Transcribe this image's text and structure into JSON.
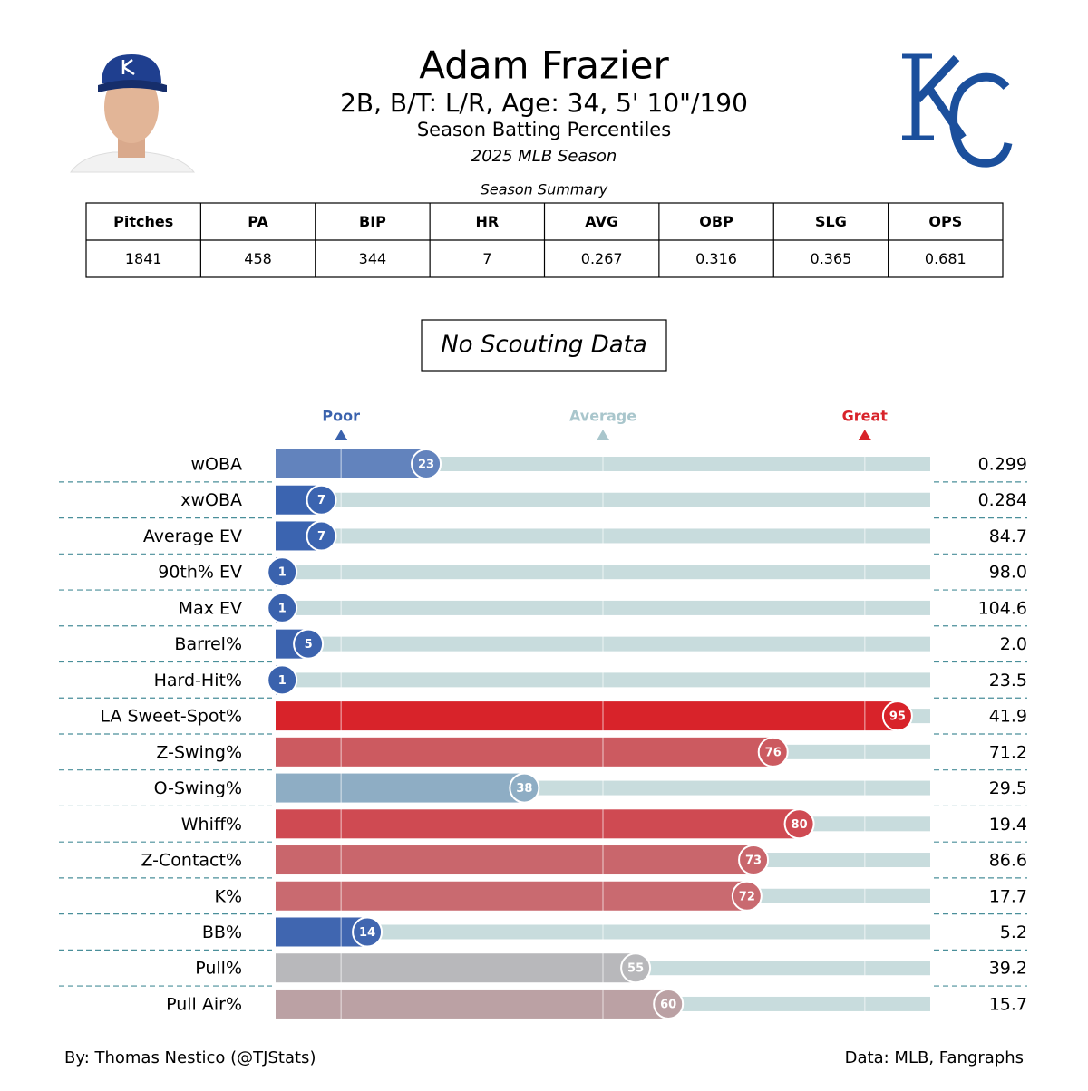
{
  "header": {
    "name": "Adam Frazier",
    "bio": "2B, B/T: L/R, Age: 34, 5' 10\"/190",
    "subtitle": "Season Batting Percentiles",
    "season": "2025 MLB Season"
  },
  "summary_table": {
    "title": "Season Summary",
    "columns": [
      "Pitches",
      "PA",
      "BIP",
      "HR",
      "AVG",
      "OBP",
      "SLG",
      "OPS"
    ],
    "rows": [
      [
        1841,
        458,
        344,
        7,
        0.267,
        0.316,
        0.365,
        0.681
      ]
    ]
  },
  "scouting": "No Scouting Data",
  "chart_data": {
    "type": "percentile-bar",
    "categories": [
      "wOBA",
      "xwOBA",
      "Average EV",
      "90th% EV",
      "Max EV",
      "Barrel%",
      "Hard-Hit%",
      "LA Sweet-Spot%",
      "Z-Swing%",
      "O-Swing%",
      "Whiff%",
      "Z-Contact%",
      "K%",
      "BB%",
      "Pull%",
      "Pull Air%"
    ],
    "values": [
      23,
      7,
      7,
      1,
      1,
      5,
      1,
      95,
      76,
      38,
      80,
      73,
      72,
      14,
      55,
      60
    ],
    "colors": [
      "#6283bd",
      "#3b64b0",
      "#3b64b0",
      "#3a62ad",
      "#3a62ad",
      "#3c63ae",
      "#3a62ad",
      "#d8232a",
      "#cc5a60",
      "#8eadc4",
      "#cf4a52",
      "#c9666c",
      "#c96a70",
      "#4066b0",
      "#b8b8bb",
      "#bba1a4"
    ],
    "stats": [
      "0.299",
      "0.284",
      "84.7",
      "98.0",
      "104.6",
      "2.0",
      "23.5",
      "41.9",
      "71.2",
      "29.5",
      "19.4",
      "86.6",
      "17.7",
      "5.2",
      "39.2",
      "15.7"
    ],
    "xlim": [
      0,
      100
    ],
    "xticks": [
      {
        "value": 10,
        "label": "Poor"
      },
      {
        "value": 50,
        "label": "Average"
      },
      {
        "value": 90,
        "label": "Great"
      }
    ],
    "tick_colors": [
      "#3a62ad",
      "#a9c6cc",
      "#d8232a"
    ],
    "track_color": "#c8dcdd"
  },
  "footer": {
    "left": "By: Thomas Nestico (@TJStats)",
    "right": "Data: MLB, Fangraphs"
  }
}
